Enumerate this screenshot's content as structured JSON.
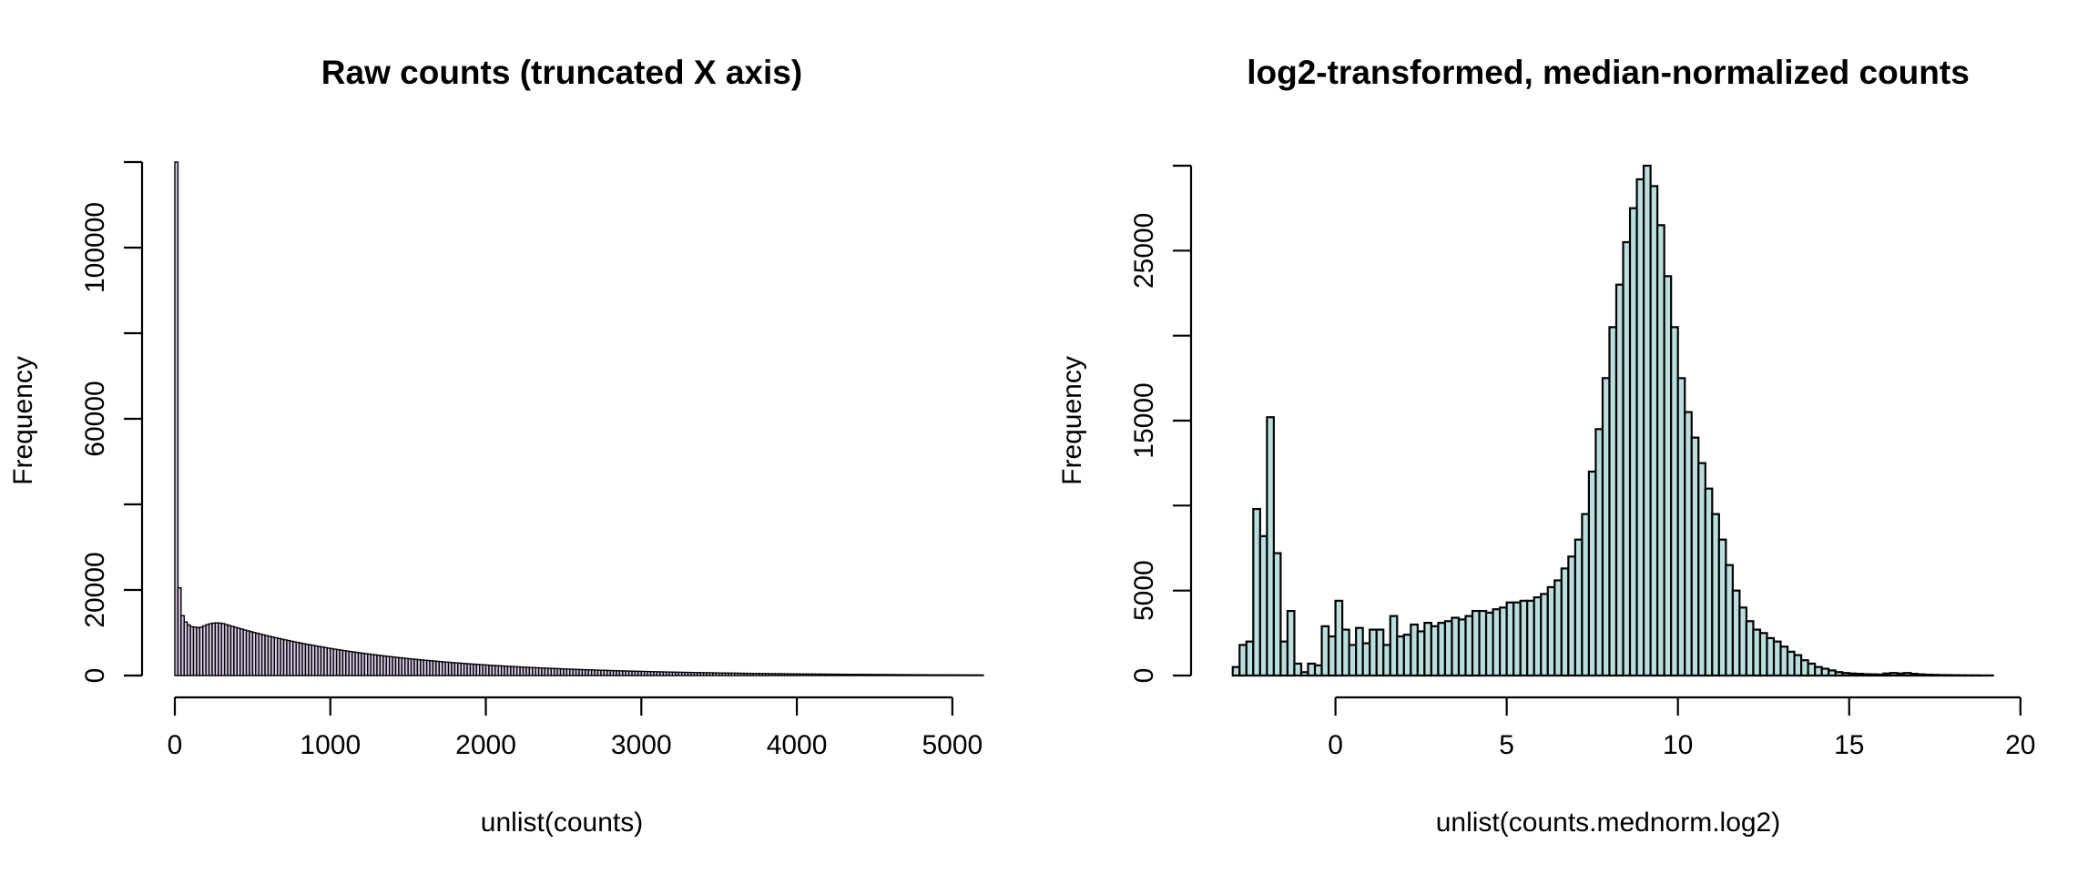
{
  "chart_data": [
    {
      "type": "bar",
      "title": "Raw counts (truncated X axis)",
      "xlabel": "unlist(counts)",
      "ylabel": "Frequency",
      "xlim": [
        0,
        5200
      ],
      "ylim": [
        0,
        120000
      ],
      "xticks": [
        0,
        1000,
        2000,
        3000,
        4000,
        5000
      ],
      "yticks": [
        0,
        20000,
        60000,
        100000
      ],
      "ytick_labels_shown": [
        "0",
        "20000",
        "60000",
        "100000"
      ],
      "ytick_marks": [
        0,
        20000,
        40000,
        60000,
        80000,
        100000,
        120000
      ],
      "bin_width": 20,
      "bar_fill": "#d8c8e6",
      "bar_edge": "#000000",
      "bins": [
        [
          0,
          120000
        ],
        [
          20,
          20500
        ],
        [
          40,
          14000
        ],
        [
          60,
          12500
        ],
        [
          80,
          11800
        ],
        [
          100,
          11400
        ],
        [
          120,
          11300
        ],
        [
          140,
          11200
        ],
        [
          160,
          11300
        ],
        [
          180,
          11600
        ],
        [
          200,
          11900
        ],
        [
          220,
          12100
        ],
        [
          240,
          12250
        ],
        [
          260,
          12300
        ],
        [
          280,
          12250
        ],
        [
          300,
          12150
        ]
      ],
      "tail_decay": {
        "from": 300,
        "to": 5200,
        "start_value": 12150,
        "end_value": 120
      }
    },
    {
      "type": "bar",
      "title": "log2-transformed, median-normalized counts",
      "xlabel": "unlist(counts.mednorm.log2)",
      "ylabel": "Frequency",
      "xlim": [
        -3.1,
        19.5
      ],
      "ylim": [
        0,
        30000
      ],
      "xticks": [
        0,
        5,
        10,
        15,
        20
      ],
      "yticks": [
        0,
        5000,
        15000,
        25000
      ],
      "ytick_labels_shown": [
        "0",
        "5000",
        "15000",
        "25000"
      ],
      "ytick_marks": [
        0,
        5000,
        10000,
        15000,
        20000,
        25000,
        30000
      ],
      "bin_width": 0.2,
      "bar_fill": "#b8dedd",
      "bar_edge": "#000000",
      "bins": [
        [
          -3.0,
          500
        ],
        [
          -2.8,
          1800
        ],
        [
          -2.6,
          2000
        ],
        [
          -2.4,
          9800
        ],
        [
          -2.2,
          8200
        ],
        [
          -2.0,
          15200
        ],
        [
          -1.8,
          7200
        ],
        [
          -1.6,
          2000
        ],
        [
          -1.4,
          3800
        ],
        [
          -1.2,
          700
        ],
        [
          -1.0,
          200
        ],
        [
          -0.8,
          700
        ],
        [
          -0.6,
          600
        ],
        [
          -0.4,
          2900
        ],
        [
          -0.2,
          2300
        ],
        [
          0.0,
          4400
        ],
        [
          0.2,
          2700
        ],
        [
          0.4,
          1800
        ],
        [
          0.6,
          2800
        ],
        [
          0.8,
          1900
        ],
        [
          1.0,
          2700
        ],
        [
          1.2,
          2700
        ],
        [
          1.4,
          1800
        ],
        [
          1.6,
          3500
        ],
        [
          1.8,
          2300
        ],
        [
          2.0,
          2400
        ],
        [
          2.2,
          3000
        ],
        [
          2.4,
          2600
        ],
        [
          2.6,
          3100
        ],
        [
          2.8,
          2900
        ],
        [
          3.0,
          3100
        ],
        [
          3.2,
          3200
        ],
        [
          3.4,
          3400
        ],
        [
          3.6,
          3300
        ],
        [
          3.8,
          3500
        ],
        [
          4.0,
          3800
        ],
        [
          4.2,
          3800
        ],
        [
          4.4,
          3700
        ],
        [
          4.6,
          3900
        ],
        [
          4.8,
          4000
        ],
        [
          5.0,
          4300
        ],
        [
          5.2,
          4300
        ],
        [
          5.4,
          4400
        ],
        [
          5.6,
          4400
        ],
        [
          5.8,
          4600
        ],
        [
          6.0,
          4800
        ],
        [
          6.2,
          5200
        ],
        [
          6.4,
          5600
        ],
        [
          6.6,
          6300
        ],
        [
          6.8,
          7000
        ],
        [
          7.0,
          8000
        ],
        [
          7.2,
          9500
        ],
        [
          7.4,
          12000
        ],
        [
          7.6,
          14500
        ],
        [
          7.8,
          17500
        ],
        [
          8.0,
          20500
        ],
        [
          8.2,
          23000
        ],
        [
          8.4,
          25500
        ],
        [
          8.6,
          27500
        ],
        [
          8.8,
          29200
        ],
        [
          9.0,
          30000
        ],
        [
          9.2,
          28800
        ],
        [
          9.4,
          26500
        ],
        [
          9.6,
          23500
        ],
        [
          9.8,
          20500
        ],
        [
          10.0,
          17500
        ],
        [
          10.2,
          15500
        ],
        [
          10.4,
          14000
        ],
        [
          10.6,
          12500
        ],
        [
          10.8,
          11000
        ],
        [
          11.0,
          9500
        ],
        [
          11.2,
          8000
        ],
        [
          11.4,
          6500
        ],
        [
          11.6,
          5000
        ],
        [
          11.8,
          4000
        ],
        [
          12.0,
          3200
        ],
        [
          12.2,
          2700
        ],
        [
          12.4,
          2500
        ],
        [
          12.6,
          2200
        ],
        [
          12.8,
          2000
        ],
        [
          13.0,
          1700
        ],
        [
          13.2,
          1400
        ],
        [
          13.4,
          1200
        ],
        [
          13.6,
          900
        ],
        [
          13.8,
          700
        ],
        [
          14.0,
          500
        ],
        [
          14.2,
          400
        ],
        [
          14.4,
          300
        ],
        [
          14.6,
          200
        ],
        [
          14.8,
          150
        ],
        [
          15.0,
          120
        ],
        [
          15.2,
          100
        ],
        [
          15.4,
          80
        ],
        [
          15.6,
          70
        ],
        [
          15.8,
          60
        ],
        [
          16.0,
          120
        ],
        [
          16.2,
          150
        ],
        [
          16.4,
          120
        ],
        [
          16.6,
          150
        ],
        [
          16.8,
          100
        ],
        [
          17.0,
          70
        ],
        [
          17.2,
          50
        ],
        [
          17.4,
          40
        ],
        [
          17.6,
          30
        ],
        [
          17.8,
          25
        ],
        [
          18.0,
          20
        ],
        [
          18.2,
          15
        ],
        [
          18.4,
          10
        ],
        [
          18.6,
          10
        ],
        [
          18.8,
          5
        ],
        [
          19.0,
          5
        ]
      ]
    }
  ]
}
